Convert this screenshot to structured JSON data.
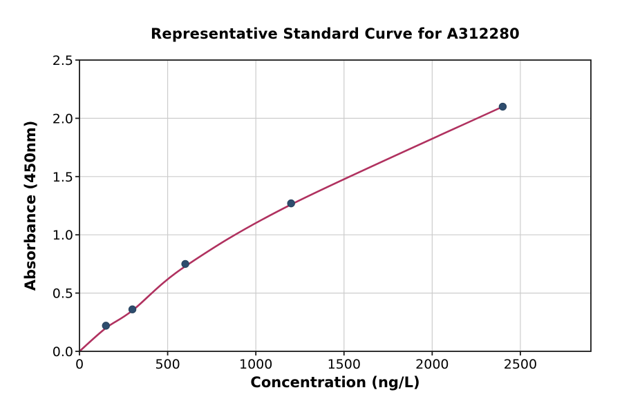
{
  "chart_data": {
    "type": "scatter",
    "title": "Representative Standard Curve for A312280",
    "xlabel": "Concentration (ng/L)",
    "ylabel": "Absorbance (450nm)",
    "xlim": [
      0,
      2900
    ],
    "ylim": [
      0,
      2.5
    ],
    "xticks": [
      0,
      500,
      1000,
      1500,
      2000,
      2500
    ],
    "yticks": [
      0.0,
      0.5,
      1.0,
      1.5,
      2.0,
      2.5
    ],
    "ytick_decimals": 1,
    "grid": true,
    "legend": "none",
    "points": {
      "x": [
        150,
        300,
        600,
        1200,
        2400
      ],
      "y": [
        0.22,
        0.36,
        0.75,
        1.27,
        2.1
      ]
    },
    "fit_curve": {
      "x": [
        0,
        150,
        300,
        600,
        1200,
        2400
      ],
      "y": [
        0.0,
        0.2,
        0.35,
        0.73,
        1.26,
        2.1
      ]
    },
    "colors": {
      "curve": "#b0315f",
      "point_fill": "#2e4d6e",
      "point_edge": "#27415c",
      "grid": "#cccccc",
      "spine": "#1a1a1a",
      "tick_text": "#000000",
      "background": "#ffffff"
    }
  }
}
